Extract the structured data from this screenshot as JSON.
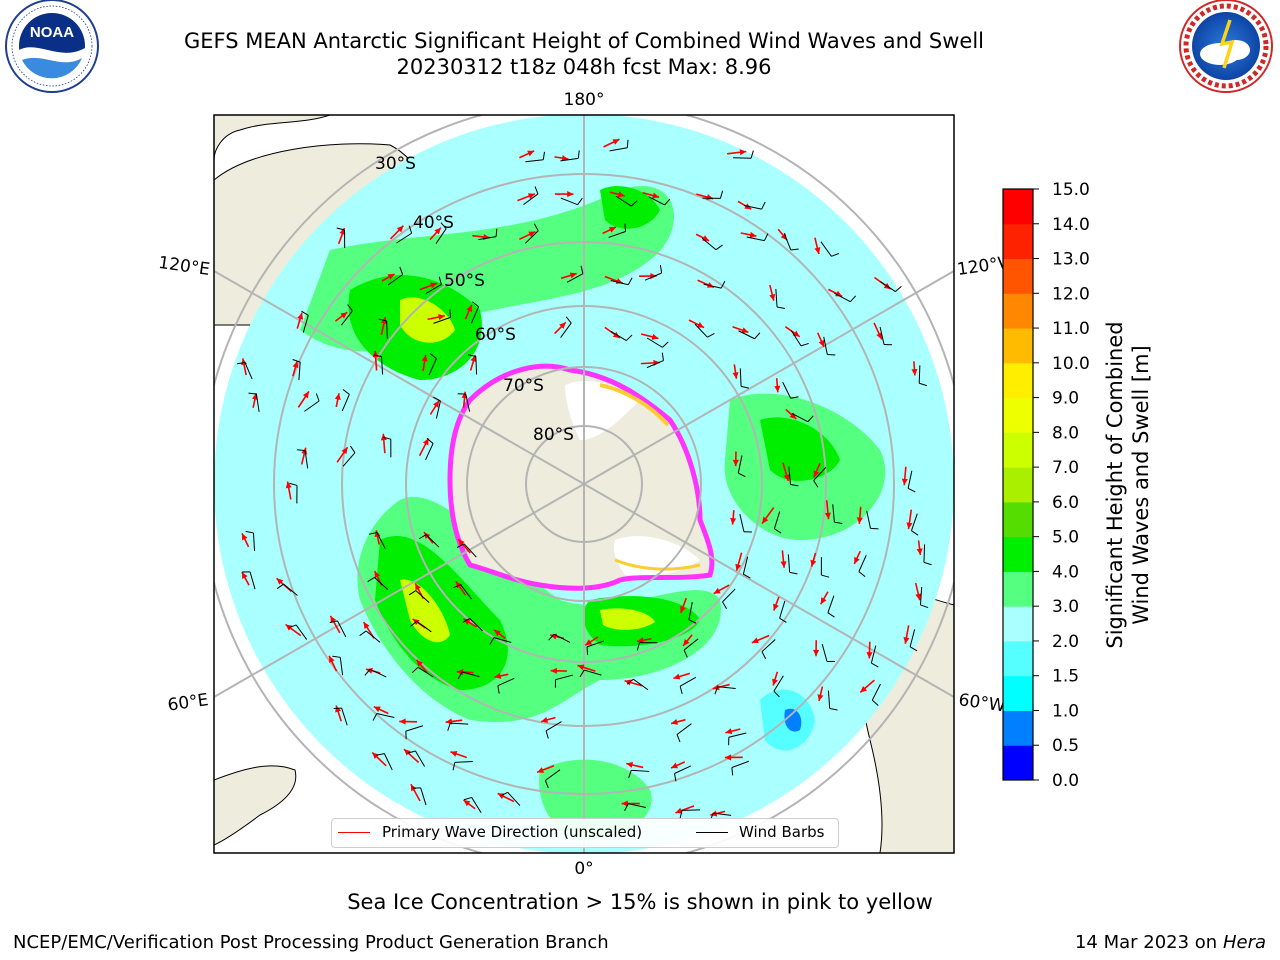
{
  "title": {
    "line1": "GEFS MEAN Antarctic Significant Height of Combined Wind Waves and Swell",
    "line2": "20230312 t18z 048h fcst   Max: 8.96"
  },
  "logos": {
    "left": {
      "name": "NOAA",
      "ring_text": "NATIONAL OCEANIC AND ATMOSPHERIC ADMINISTRATION · U.S. DEPARTMENT OF COMMERCE"
    },
    "right": {
      "name": "NATIONAL WEATHER SERVICE"
    }
  },
  "map": {
    "longitude_labels": {
      "top": "180°",
      "bottom": "0°",
      "upper_left": "120°E",
      "upper_right": "120°W",
      "lower_left": "60°E",
      "lower_right": "60°W"
    },
    "latitude_labels": [
      "30°S",
      "40°S",
      "50°S",
      "60°S",
      "70°S",
      "80°S"
    ],
    "projection": "south polar stereographic",
    "land_color": "#eeecdc",
    "ocean_color": "#aaffff",
    "sea_ice_colors": [
      "#ff33ff",
      "#ffcc33",
      "#ffffff"
    ]
  },
  "legend": {
    "primary_wave_label": "Primary Wave Direction (unscaled)",
    "primary_wave_color": "#ff0000",
    "wind_barbs_label": "Wind Barbs",
    "wind_barbs_color": "#000000"
  },
  "colorbar": {
    "label_line1": "Significant Height of Combined",
    "label_line2": "Wind Waves and Swell [m]",
    "ticks": [
      "0.0",
      "0.5",
      "1.0",
      "1.5",
      "2.0",
      "3.0",
      "4.0",
      "5.0",
      "6.0",
      "7.0",
      "8.0",
      "9.0",
      "10.0",
      "11.0",
      "12.0",
      "13.0",
      "14.0",
      "15.0"
    ],
    "colors": [
      "#0000ff",
      "#0080ff",
      "#00ffff",
      "#55ffff",
      "#aaffff",
      "#55ff80",
      "#00ee00",
      "#55dd00",
      "#aaee00",
      "#ccff00",
      "#eeff00",
      "#ffee00",
      "#ffbb00",
      "#ff8800",
      "#ff5500",
      "#ff2200",
      "#ff0000"
    ]
  },
  "notes": {
    "sea_ice": "Sea Ice Concentration > 15% is shown in pink to yellow",
    "branch": "NCEP/EMC/Verification Post Processing Product Generation Branch",
    "run_date": "14 Mar 2023 on",
    "machine": "Hera"
  }
}
